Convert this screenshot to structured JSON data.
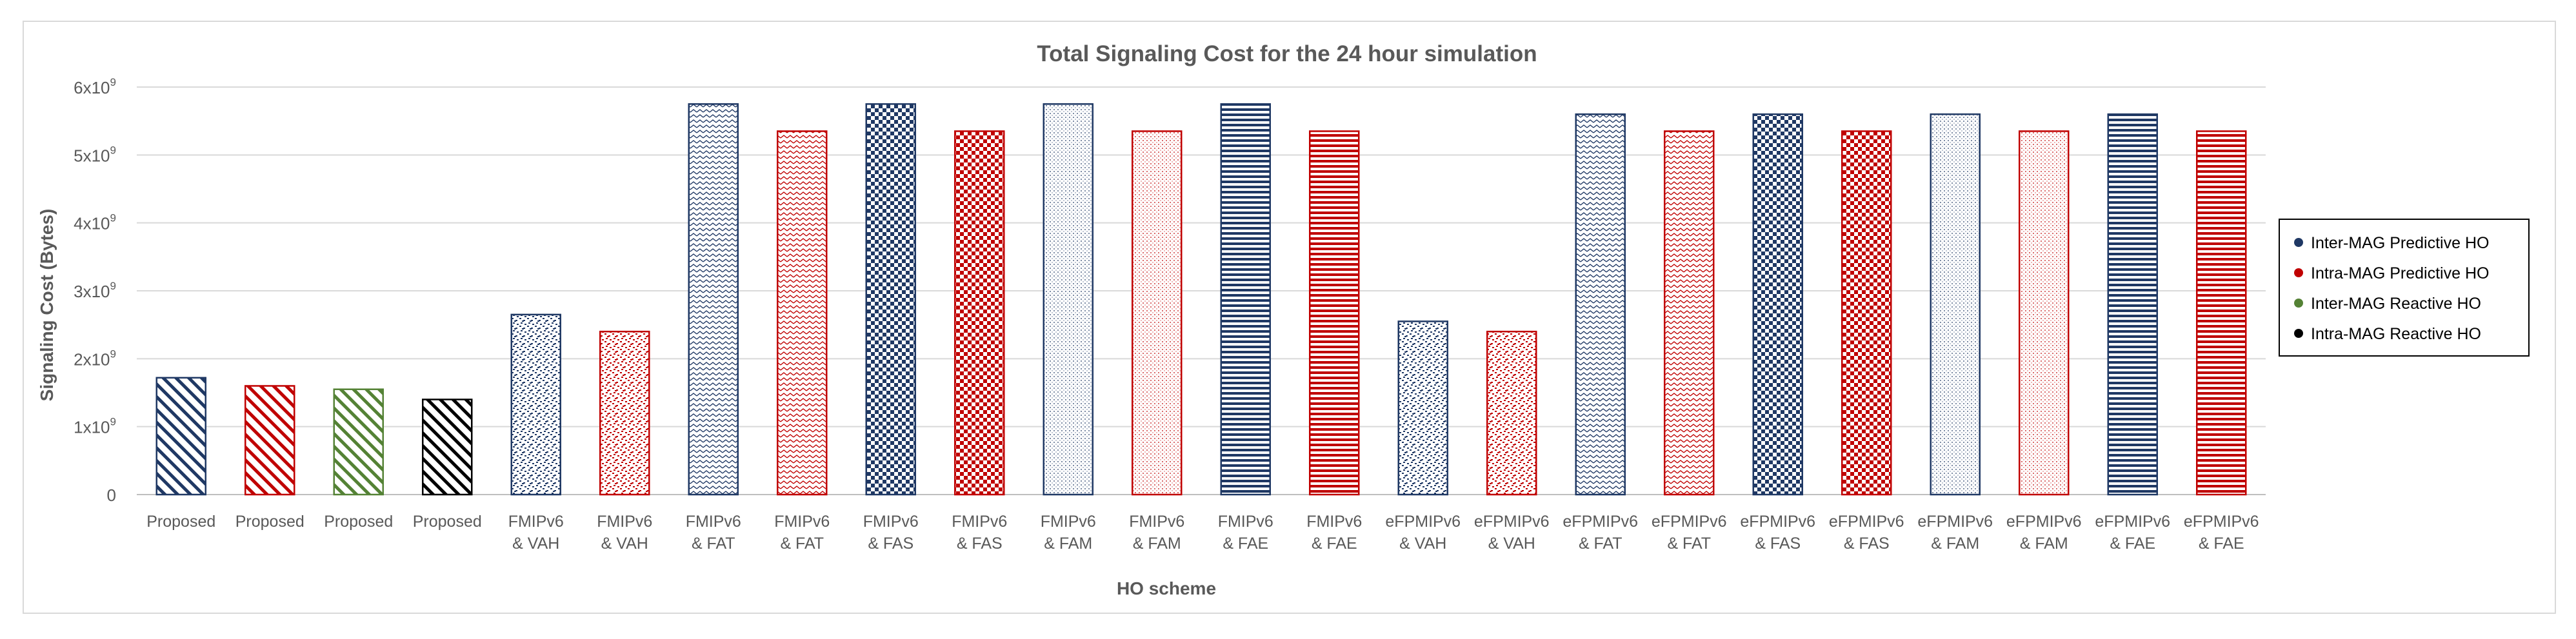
{
  "chart_data": {
    "type": "bar",
    "title": "Total Signaling Cost for the 24 hour simulation",
    "xlabel": "HO scheme",
    "ylabel": "Signaling Cost (Bytes)",
    "ylim": [
      0,
      6000000000
    ],
    "grid": true,
    "legend_position": "right",
    "yticks": [
      {
        "value": 0,
        "base": "0",
        "exp": ""
      },
      {
        "value": 1000000000,
        "base": "1x10",
        "exp": "9"
      },
      {
        "value": 2000000000,
        "base": "2x10",
        "exp": "9"
      },
      {
        "value": 3000000000,
        "base": "3x10",
        "exp": "9"
      },
      {
        "value": 4000000000,
        "base": "4x10",
        "exp": "9"
      },
      {
        "value": 5000000000,
        "base": "5x10",
        "exp": "9"
      },
      {
        "value": 6000000000,
        "base": "6x10",
        "exp": "9"
      }
    ],
    "legend": [
      {
        "label": "Inter-MAG Predictive HO",
        "color": "#1f3864"
      },
      {
        "label": "Intra-MAG Predictive HO",
        "color": "#c00000"
      },
      {
        "label": "Inter-MAG Reactive HO",
        "color": "#548235"
      },
      {
        "label": "Intra-MAG Reactive HO",
        "color": "#000000"
      }
    ],
    "bars": [
      {
        "line1": "Proposed",
        "line2": "",
        "value": 1720000000,
        "series": 0,
        "pattern": "diag"
      },
      {
        "line1": "Proposed",
        "line2": "",
        "value": 1600000000,
        "series": 1,
        "pattern": "diag"
      },
      {
        "line1": "Proposed",
        "line2": "",
        "value": 1550000000,
        "series": 2,
        "pattern": "diag"
      },
      {
        "line1": "Proposed",
        "line2": "",
        "value": 1400000000,
        "series": 3,
        "pattern": "diag"
      },
      {
        "line1": "FMIPv6",
        "line2": "& VAH",
        "value": 2650000000,
        "series": 0,
        "pattern": "confetti"
      },
      {
        "line1": "FMIPv6",
        "line2": "& VAH",
        "value": 2400000000,
        "series": 1,
        "pattern": "confetti"
      },
      {
        "line1": "FMIPv6",
        "line2": "& FAT",
        "value": 5750000000,
        "series": 0,
        "pattern": "zigzag"
      },
      {
        "line1": "FMIPv6",
        "line2": "& FAT",
        "value": 5350000000,
        "series": 1,
        "pattern": "zigzag"
      },
      {
        "line1": "FMIPv6",
        "line2": "& FAS",
        "value": 5750000000,
        "series": 0,
        "pattern": "check"
      },
      {
        "line1": "FMIPv6",
        "line2": "& FAS",
        "value": 5350000000,
        "series": 1,
        "pattern": "check"
      },
      {
        "line1": "FMIPv6",
        "line2": "& FAM",
        "value": 5750000000,
        "series": 0,
        "pattern": "dots"
      },
      {
        "line1": "FMIPv6",
        "line2": "& FAM",
        "value": 5350000000,
        "series": 1,
        "pattern": "dots"
      },
      {
        "line1": "FMIPv6",
        "line2": "& FAE",
        "value": 5750000000,
        "series": 0,
        "pattern": "hstripe"
      },
      {
        "line1": "FMIPv6",
        "line2": "& FAE",
        "value": 5350000000,
        "series": 1,
        "pattern": "hstripe"
      },
      {
        "line1": "eFPMIPv6",
        "line2": "& VAH",
        "value": 2550000000,
        "series": 0,
        "pattern": "confetti"
      },
      {
        "line1": "eFPMIPv6",
        "line2": "& VAH",
        "value": 2400000000,
        "series": 1,
        "pattern": "confetti"
      },
      {
        "line1": "eFPMIPv6",
        "line2": "& FAT",
        "value": 5600000000,
        "series": 0,
        "pattern": "zigzag"
      },
      {
        "line1": "eFPMIPv6",
        "line2": "& FAT",
        "value": 5350000000,
        "series": 1,
        "pattern": "zigzag"
      },
      {
        "line1": "eFPMIPv6",
        "line2": "& FAS",
        "value": 5600000000,
        "series": 0,
        "pattern": "check"
      },
      {
        "line1": "eFPMIPv6",
        "line2": "& FAS",
        "value": 5350000000,
        "series": 1,
        "pattern": "check"
      },
      {
        "line1": "eFPMIPv6",
        "line2": "& FAM",
        "value": 5600000000,
        "series": 0,
        "pattern": "dots"
      },
      {
        "line1": "eFPMIPv6",
        "line2": "& FAM",
        "value": 5350000000,
        "series": 1,
        "pattern": "dots"
      },
      {
        "line1": "eFPMIPv6",
        "line2": "& FAE",
        "value": 5600000000,
        "series": 0,
        "pattern": "hstripe"
      },
      {
        "line1": "eFPMIPv6",
        "line2": "& FAE",
        "value": 5350000000,
        "series": 1,
        "pattern": "hstripe"
      }
    ]
  }
}
